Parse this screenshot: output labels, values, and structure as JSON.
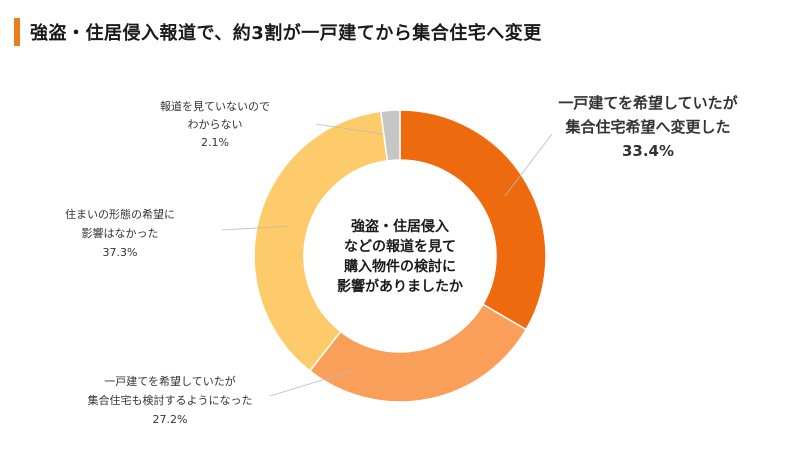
{
  "title": "強盗・住居侵入報道で、約3割が一戸建てから集合住宅へ変更",
  "colors": {
    "accent": "#ED6A0E",
    "title_bar": "#ED7D1F",
    "slice_1": "#ED6A0E",
    "slice_2": "#F99F5A",
    "slice_3": "#FDCB69",
    "slice_4": "#C6C6C6",
    "leader": "#BBBBBB"
  },
  "chart_data": {
    "type": "pie",
    "donut": true,
    "title": "強盗・住居侵入報道で、約3割が一戸建てから集合住宅へ変更",
    "center_text": [
      "強盗・住居侵入",
      "などの報道を見て",
      "購入物件の検討に",
      "影響がありましたか"
    ],
    "slices": [
      {
        "label_lines": [
          "一戸建てを希望していたが",
          "集合住宅希望へ変更した"
        ],
        "value": 33.4,
        "value_text": "33.4%",
        "highlight": true
      },
      {
        "label_lines": [
          "一戸建てを希望していたが",
          "集合住宅も検討するようになった"
        ],
        "value": 27.2,
        "value_text": "27.2%",
        "highlight": false
      },
      {
        "label_lines": [
          "住まいの形態の希望に",
          "影響はなかった"
        ],
        "value": 37.3,
        "value_text": "37.3%",
        "highlight": false
      },
      {
        "label_lines": [
          "報道を見ていないので",
          "わからない"
        ],
        "value": 2.1,
        "value_text": "2.1%",
        "highlight": false
      }
    ]
  }
}
